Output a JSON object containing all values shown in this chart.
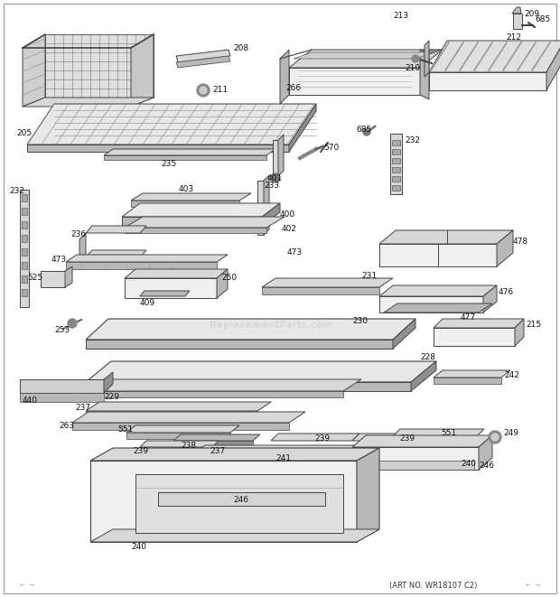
{
  "art_no": "(ART NO. WR18107 C2)",
  "watermark": "ReplacementParts.com",
  "background_color": "#ffffff",
  "border_color": "#aaaaaa",
  "figsize": [
    6.2,
    6.61
  ],
  "dpi": 100,
  "line_color": "#444444",
  "fill_light": "#d8d8d8",
  "fill_mid": "#b8b8b8",
  "fill_dark": "#909090",
  "fill_white": "#f0f0f0"
}
